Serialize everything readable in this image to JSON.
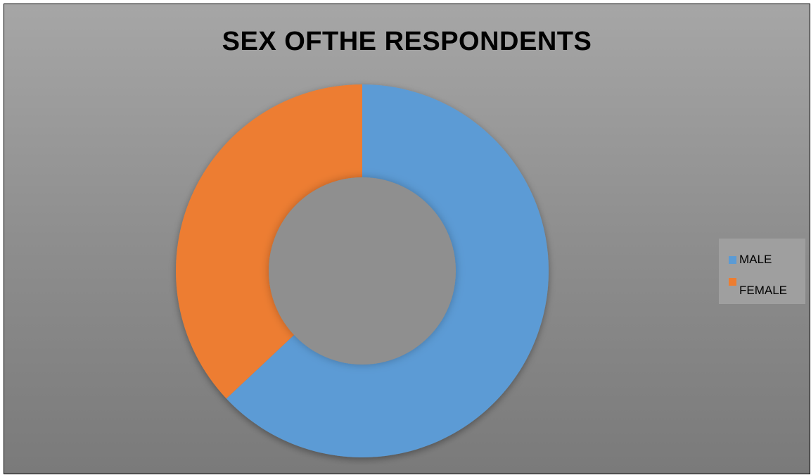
{
  "chart_data": {
    "type": "pie",
    "style": "donut",
    "title": "SEX OFTHE RESPONDENTS",
    "categories": [
      "MALE",
      "FEMALE"
    ],
    "values": [
      63,
      37
    ],
    "colors": [
      "#5b9bd5",
      "#ed7d31"
    ],
    "legend": {
      "position": "right",
      "entries": [
        "MALE",
        "FEMALE"
      ]
    }
  }
}
